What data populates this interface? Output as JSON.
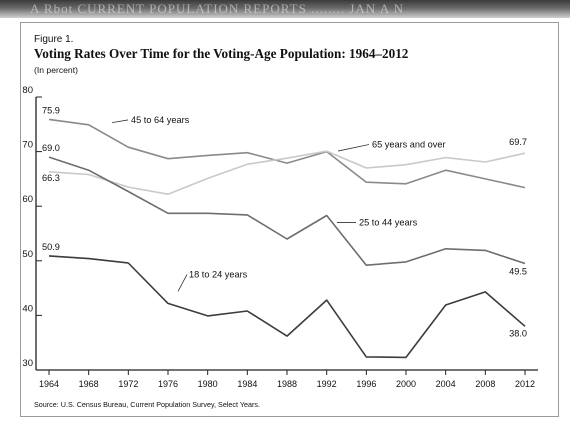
{
  "header": {
    "strip_text": "A  Rbot  CURRENT  POPULATION  REPORTS  ........  JAN  A  N"
  },
  "figure": {
    "label": "Figure 1.",
    "title": "Voting Rates Over Time for the Voting-Age Population: 1964–2012",
    "unit": "(In percent)",
    "source": "Source: U.S. Census Bureau, Current Population Survey, Select Years."
  },
  "chart_data": {
    "type": "line",
    "title": "Voting Rates Over Time for the Voting-Age Population: 1964–2012",
    "xlabel": "",
    "ylabel": "(In percent)",
    "x": [
      1964,
      1968,
      1972,
      1976,
      1980,
      1984,
      1988,
      1992,
      1996,
      2000,
      2004,
      2008,
      2012
    ],
    "ylim": [
      30,
      80
    ],
    "yticks": [
      30,
      40,
      50,
      60,
      70,
      80
    ],
    "grid": false,
    "series": [
      {
        "name": "45 to 64 years",
        "color": "#8a8a8a",
        "values": [
          75.9,
          74.9,
          70.8,
          68.7,
          69.3,
          69.8,
          67.9,
          70.0,
          64.4,
          64.1,
          66.6,
          65.0,
          63.4
        ],
        "start_label": "75.9",
        "end_label": ""
      },
      {
        "name": "65 years and over",
        "color": "#c9c9c9",
        "values": [
          66.3,
          65.8,
          63.5,
          62.2,
          65.1,
          67.7,
          68.8,
          70.1,
          67.0,
          67.6,
          68.9,
          68.1,
          69.7
        ],
        "start_label": "66.3",
        "end_label": "69.7"
      },
      {
        "name": "25 to 44 years",
        "color": "#6e6e6e",
        "values": [
          69.0,
          66.6,
          62.7,
          58.7,
          58.7,
          58.4,
          54.0,
          58.3,
          49.2,
          49.8,
          52.2,
          51.9,
          49.5
        ],
        "start_label": "69.0",
        "end_label": "49.5"
      },
      {
        "name": "18 to 24 years",
        "color": "#3c3c3c",
        "values": [
          50.9,
          50.4,
          49.6,
          42.2,
          39.9,
          40.8,
          36.2,
          42.8,
          32.4,
          32.3,
          41.9,
          44.3,
          38.0
        ],
        "start_label": "50.9",
        "end_label": "38.0"
      }
    ]
  }
}
